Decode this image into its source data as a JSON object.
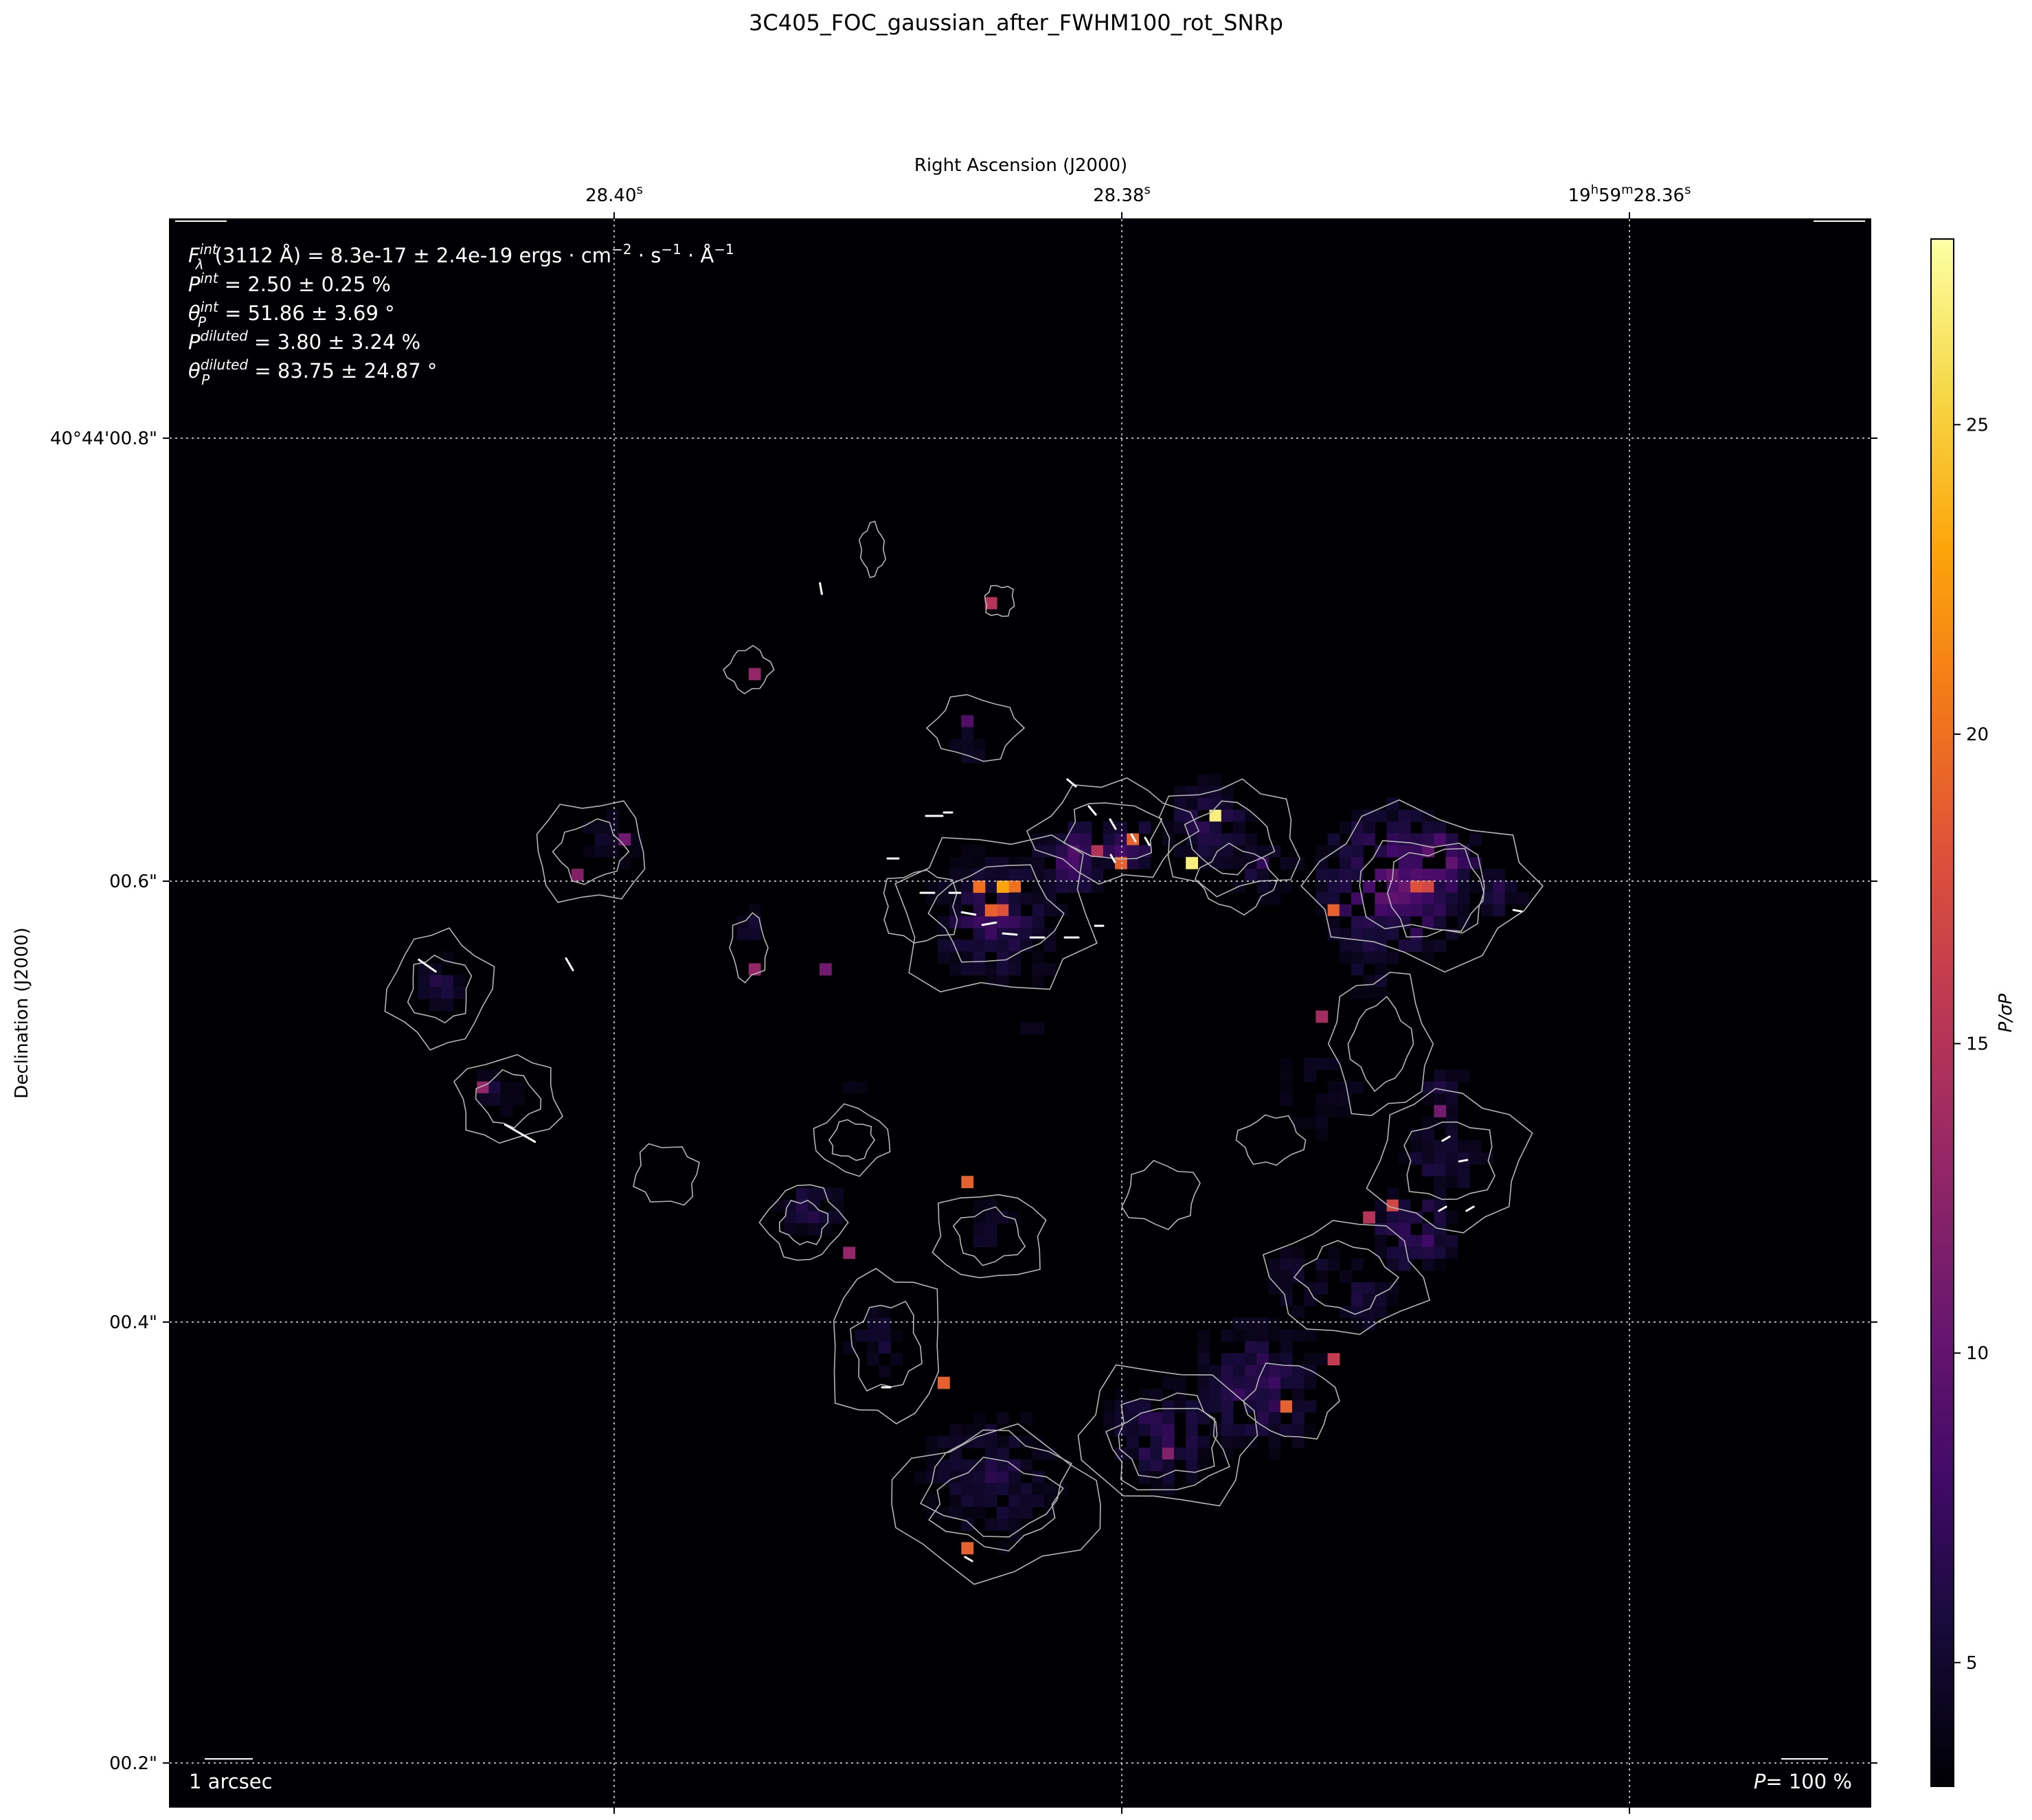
{
  "chart_data": {
    "type": "heatmap",
    "title": "3C405_FOC_gaussian_after_FWHM100_rot_SNRp",
    "xlabel": "Right Ascension (J2000)",
    "ylabel": "Declination (J2000)",
    "x_ticks": [
      "28.40",
      "28.38",
      "19h59m28.36"
    ],
    "x_tick_parts": [
      {
        "main": "28.40",
        "sup": "s"
      },
      {
        "main": "28.38",
        "sup": "s"
      },
      {
        "main": "19",
        "sup1": "h",
        "main2": "59",
        "sup2": "m",
        "main3": "28.36",
        "sup3": "s"
      }
    ],
    "y_ticks": [
      "40°44'00.8\"",
      "00.6\"",
      "00.4\"",
      "00.2\""
    ],
    "colorbar": {
      "label": "P/σP",
      "ticks": [
        5,
        10,
        15,
        20,
        25
      ],
      "range": [
        3,
        28
      ],
      "colormap": "inferno"
    },
    "grid": true,
    "stats": {
      "flux_label": "F",
      "flux_sup": "int",
      "flux_sub": "λ",
      "flux_text": "(3112 Å) = 8.3e-17 ± 2.4e-19 ergs · cm",
      "flux_exp1": "−2",
      "flux_mid1": " · s",
      "flux_exp2": "−1",
      "flux_mid2": " · Å",
      "flux_exp3": "−1",
      "p_int_sym": "P",
      "p_int_sup": "int",
      "p_int_text": " = 2.50 ± 0.25 %",
      "theta_int_sym": "θ",
      "theta_int_sub": "P",
      "theta_int_sup": "int",
      "theta_int_text": " = 51.86 ± 3.69 °",
      "p_dil_sym": "P",
      "p_dil_sup": "diluted",
      "p_dil_text": " = 3.80 ± 3.24 %",
      "theta_dil_sym": "θ",
      "theta_dil_sub": "P",
      "theta_dil_sup": "diluted",
      "theta_dil_text": " = 83.75 ± 24.87 °"
    },
    "scalebar_label": "1 arcsec",
    "pol_scale_label": "P= 100 %",
    "pol_scale_sym": "P",
    "pol_scale_text": "= 100 %",
    "colors": {
      "background": "#000004",
      "contour": "#b4b4b4",
      "vector": "#ffffff"
    }
  }
}
